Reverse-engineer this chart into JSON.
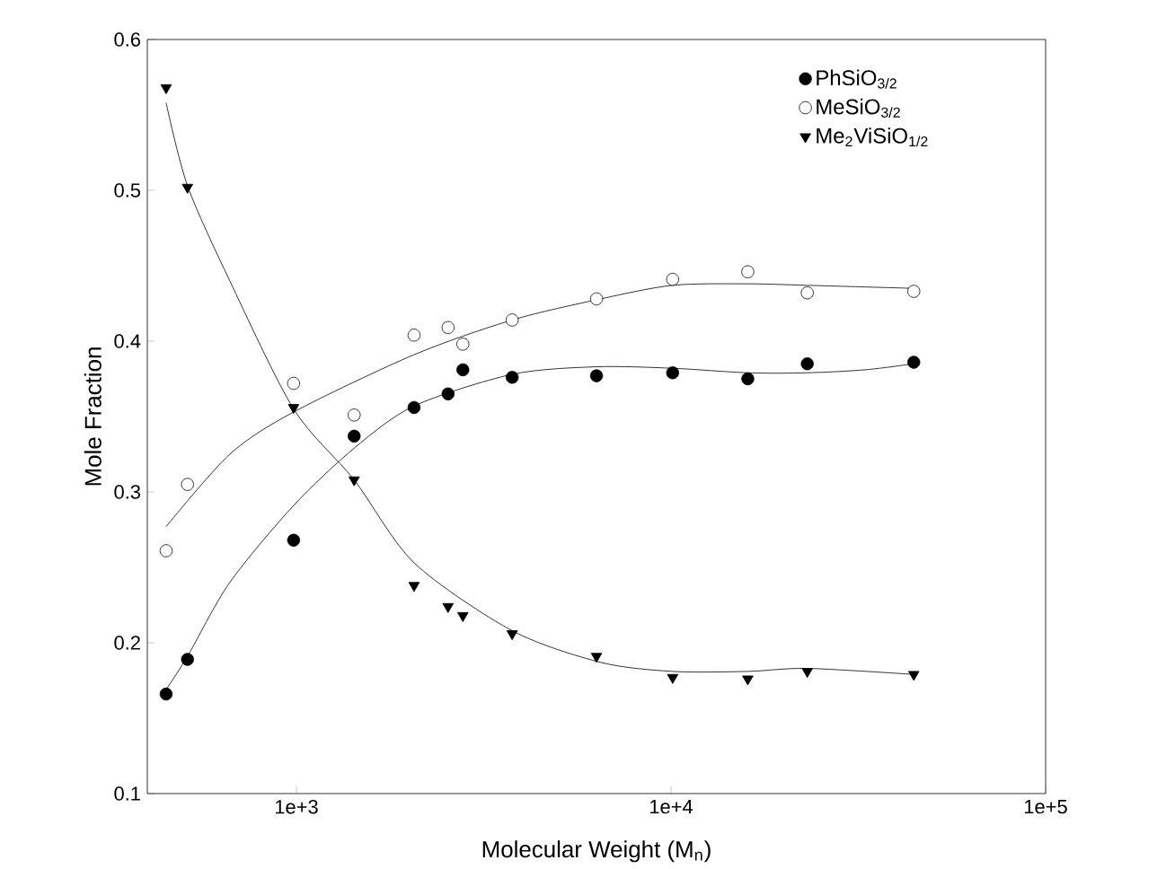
{
  "chart_data": {
    "type": "scatter",
    "xlabel": "Molecular Weight (M$_{n}$)",
    "ylabel": "Mole Fraction",
    "log": "x",
    "xlim": [
      400,
      100000
    ],
    "ylim": [
      0.1,
      0.6
    ],
    "xticks": [
      {
        "value": 1000,
        "label": "1e+3"
      },
      {
        "value": 10000,
        "label": "1e+4"
      },
      {
        "value": 100000,
        "label": "1e+5"
      }
    ],
    "yticks": [
      0.1,
      0.2,
      0.3,
      0.4,
      0.5,
      0.6
    ],
    "grid": false,
    "legend": "top right",
    "series": [
      {
        "name": "PhSiO$_{3/2}$",
        "color": "#000000",
        "marker": "circle",
        "x": [
          449,
          512,
          983,
          1426,
          2061,
          2540,
          2782,
          3767,
          6326,
          10100,
          16030,
          23110,
          44470
        ],
        "values": [
          0.166,
          0.189,
          0.268,
          0.337,
          0.356,
          0.365,
          0.381,
          0.376,
          0.377,
          0.379,
          0.375,
          0.385,
          0.386
        ]
      },
      {
        "name": "MeSiO$_{3/2}$",
        "color": "#ffffff",
        "marker": "circle",
        "x": [
          449,
          512,
          983,
          1426,
          2061,
          2540,
          2782,
          3767,
          6326,
          10100,
          16030,
          23110,
          44470
        ],
        "values": [
          0.261,
          0.305,
          0.372,
          0.351,
          0.404,
          0.409,
          0.398,
          0.414,
          0.428,
          0.441,
          0.446,
          0.432,
          0.433
        ]
      },
      {
        "name": "Me$_{2}$ViSiO$_{1/2}$",
        "color": "#000000",
        "marker": "triangle",
        "x": [
          449,
          512,
          983,
          1426,
          2061,
          2540,
          2782,
          3767,
          6326,
          10100,
          16030,
          23110,
          44470
        ],
        "values": [
          0.568,
          0.502,
          0.356,
          0.308,
          0.238,
          0.224,
          0.218,
          0.206,
          0.191,
          0.177,
          0.176,
          0.181,
          0.179
        ]
      },
      {
        "type": "line",
        "color": "#000000",
        "marker": "none",
        "line_style": "solid",
        "x": [
          449,
          512,
          664,
          983,
          1426,
          2061,
          3767,
          6326,
          10100,
          16030,
          23110,
          33000,
          44470
        ],
        "values": [
          0.169,
          0.191,
          0.24,
          0.291,
          0.329,
          0.357,
          0.378,
          0.383,
          0.382,
          0.379,
          0.379,
          0.381,
          0.385
        ]
      },
      {
        "type": "line",
        "color": "#000000",
        "marker": "none",
        "line_style": "solid",
        "x": [
          449,
          664,
          983,
          2061,
          3767,
          6486,
          10100,
          16030,
          23110,
          44470
        ],
        "values": [
          0.277,
          0.325,
          0.353,
          0.391,
          0.414,
          0.428,
          0.437,
          0.438,
          0.437,
          0.435
        ]
      },
      {
        "type": "line",
        "color": "#000000",
        "marker": "none",
        "line_style": "solid",
        "x": [
          449,
          512,
          664,
          983,
          1426,
          2061,
          3767,
          6486,
          10100,
          16030,
          23110,
          44470
        ],
        "values": [
          0.558,
          0.503,
          0.44,
          0.355,
          0.308,
          0.253,
          0.208,
          0.187,
          0.181,
          0.181,
          0.183,
          0.179
        ]
      }
    ]
  }
}
